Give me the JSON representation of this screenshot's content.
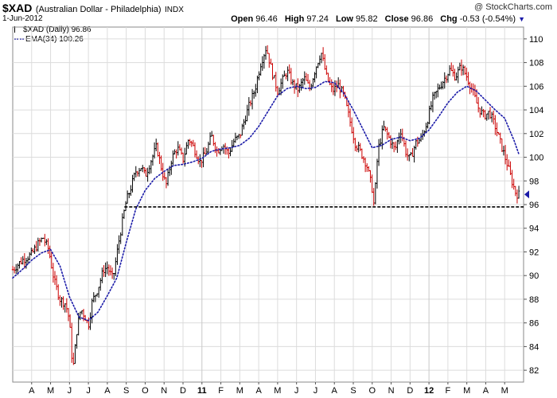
{
  "header": {
    "symbol": "$XAD",
    "description": "(Australian Dollar - Philadelphia)",
    "exchange": "INDX",
    "date": "1-Jun-2012",
    "copyright": "@ StockCharts.com",
    "open_label": "Open",
    "open_value": "96.46",
    "high_label": "High",
    "high_value": "97.24",
    "low_label": "Low",
    "low_value": "95.82",
    "close_label": "Close",
    "close_value": "96.86",
    "chg_label": "Chg",
    "chg_value": "-0.53 (-0.54%)"
  },
  "legend": {
    "price_label": "$XAD (Daily)",
    "price_value": "96.86",
    "ema_label": "EMA(34)",
    "ema_value": "100.26"
  },
  "colors": {
    "up_bar": "#000000",
    "down_bar": "#cc0000",
    "ema": "#1a1aa8",
    "grid": "#dcdcdc",
    "support_line": "#000000",
    "last_price_marker": "#1a1aa8"
  },
  "chart_data": {
    "type": "line",
    "style": "ohlc-bars",
    "grid": true,
    "legend_position": "top-left",
    "ylim": [
      81,
      111
    ],
    "y_ticks": [
      82,
      84,
      86,
      88,
      90,
      92,
      94,
      96,
      98,
      100,
      102,
      104,
      106,
      108,
      110
    ],
    "x_range": [
      0,
      27
    ],
    "x_ticks": [
      {
        "x": 1,
        "label": "A"
      },
      {
        "x": 2,
        "label": "M"
      },
      {
        "x": 3,
        "label": "J"
      },
      {
        "x": 4,
        "label": "J"
      },
      {
        "x": 5,
        "label": "A"
      },
      {
        "x": 6,
        "label": "S"
      },
      {
        "x": 7,
        "label": "O"
      },
      {
        "x": 8,
        "label": "N"
      },
      {
        "x": 9,
        "label": "D"
      },
      {
        "x": 10,
        "label": "11"
      },
      {
        "x": 11,
        "label": "F"
      },
      {
        "x": 12,
        "label": "M"
      },
      {
        "x": 13,
        "label": "A"
      },
      {
        "x": 14,
        "label": "M"
      },
      {
        "x": 15,
        "label": "J"
      },
      {
        "x": 16,
        "label": "J"
      },
      {
        "x": 17,
        "label": "A"
      },
      {
        "x": 18,
        "label": "S"
      },
      {
        "x": 19,
        "label": "O"
      },
      {
        "x": 20,
        "label": "N"
      },
      {
        "x": 21,
        "label": "D"
      },
      {
        "x": 22,
        "label": "12"
      },
      {
        "x": 23,
        "label": "F"
      },
      {
        "x": 24,
        "label": "M"
      },
      {
        "x": 25,
        "label": "A"
      },
      {
        "x": 26,
        "label": "M"
      }
    ],
    "series": [
      {
        "name": "$XAD (Daily)",
        "kind": "price",
        "x": [
          0.0,
          0.5,
          1.0,
          1.3,
          1.6,
          1.9,
          2.2,
          2.5,
          2.8,
          3.0,
          3.1,
          3.2,
          3.4,
          3.6,
          3.8,
          4.0,
          4.2,
          4.5,
          4.8,
          5.0,
          5.3,
          5.6,
          5.9,
          6.0,
          6.2,
          6.5,
          6.8,
          7.0,
          7.3,
          7.6,
          7.9,
          8.1,
          8.4,
          8.7,
          9.0,
          9.3,
          9.6,
          9.9,
          10.2,
          10.5,
          10.8,
          11.1,
          11.4,
          11.7,
          12.0,
          12.2,
          12.5,
          12.8,
          13.1,
          13.4,
          13.7,
          14.0,
          14.2,
          14.5,
          14.8,
          15.1,
          15.4,
          15.7,
          16.0,
          16.3,
          16.6,
          16.9,
          17.2,
          17.5,
          17.8,
          18.1,
          18.4,
          18.7,
          19.0,
          19.1,
          19.3,
          19.6,
          19.9,
          20.2,
          20.5,
          20.8,
          21.0,
          21.3,
          21.6,
          21.9,
          22.2,
          22.5,
          22.8,
          23.1,
          23.4,
          23.7,
          24.0,
          24.3,
          24.6,
          24.9,
          25.2,
          25.5,
          25.8,
          26.1,
          26.4,
          26.6,
          26.75
        ],
        "values": [
          90.5,
          91.3,
          91.8,
          92.6,
          93.2,
          92.2,
          89.5,
          88.0,
          87.6,
          86.2,
          83.5,
          82.3,
          85.5,
          87.2,
          86.6,
          85.8,
          87.8,
          88.9,
          90.5,
          90.7,
          89.7,
          92.8,
          95.5,
          96.3,
          97.2,
          98.8,
          99.2,
          98.4,
          99.7,
          100.9,
          98.8,
          97.6,
          99.9,
          100.8,
          99.8,
          101.6,
          100.7,
          99.6,
          100.3,
          101.8,
          100.5,
          101.1,
          100.3,
          101.4,
          101.8,
          102.9,
          104.4,
          105.7,
          107.9,
          109.3,
          107.2,
          105.6,
          106.3,
          107.3,
          106.2,
          105.7,
          106.7,
          105.8,
          107.5,
          108.9,
          106.7,
          105.6,
          106.1,
          105.2,
          103.2,
          101.2,
          100.4,
          99.4,
          97.3,
          95.8,
          100.6,
          102.5,
          101.6,
          100.6,
          102.3,
          100.3,
          99.8,
          101.2,
          101.6,
          103.0,
          104.9,
          105.8,
          106.6,
          107.4,
          106.8,
          107.7,
          106.8,
          105.6,
          104.2,
          103.5,
          103.8,
          102.6,
          101.1,
          99.6,
          97.9,
          96.9,
          96.86
        ]
      },
      {
        "name": "EMA(34)",
        "kind": "ema",
        "x": [
          0.0,
          0.5,
          1.0,
          1.5,
          2.0,
          2.5,
          3.0,
          3.5,
          4.0,
          4.5,
          5.0,
          5.5,
          6.0,
          6.5,
          7.0,
          7.5,
          8.0,
          8.5,
          9.0,
          9.5,
          10.0,
          10.5,
          11.0,
          11.5,
          12.0,
          12.5,
          13.0,
          13.5,
          14.0,
          14.5,
          15.0,
          15.5,
          16.0,
          16.5,
          17.0,
          17.5,
          18.0,
          18.5,
          19.0,
          19.5,
          20.0,
          20.5,
          21.0,
          21.5,
          22.0,
          22.5,
          23.0,
          23.5,
          24.0,
          24.5,
          25.0,
          25.5,
          26.0,
          26.5,
          26.75
        ],
        "values": [
          89.8,
          90.5,
          91.3,
          91.9,
          92.2,
          90.8,
          88.2,
          86.5,
          86.2,
          86.9,
          88.3,
          89.8,
          92.8,
          95.6,
          97.2,
          98.2,
          98.8,
          99.3,
          99.4,
          99.6,
          99.9,
          100.5,
          100.7,
          100.8,
          101.0,
          101.6,
          102.6,
          103.9,
          105.2,
          105.8,
          106.0,
          105.8,
          105.9,
          106.4,
          106.3,
          105.4,
          104.0,
          102.4,
          100.8,
          101.0,
          101.5,
          101.7,
          101.4,
          101.6,
          102.3,
          103.4,
          104.6,
          105.5,
          106.0,
          105.6,
          104.8,
          104.0,
          103.3,
          101.4,
          100.26
        ]
      }
    ],
    "annotations": [
      {
        "type": "horizontal_line",
        "y": 95.8,
        "x_start": 5.9,
        "x_end": 27.0,
        "style": "dashed"
      }
    ]
  }
}
